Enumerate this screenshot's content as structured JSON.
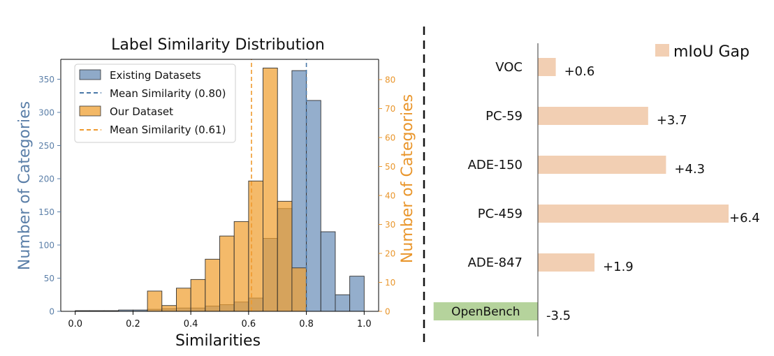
{
  "chart_data": [
    {
      "type": "bar",
      "subtype": "histogram",
      "title": "Label Similarity Distribution",
      "xlabel": "Similarities",
      "ylabel_left": "Number of Categories",
      "ylabel_right": "Number of Categories",
      "xlim": [
        -0.05,
        1.05
      ],
      "ylim_left": [
        0,
        380
      ],
      "ylim_right": [
        0,
        87
      ],
      "xticks": [
        "0.0",
        "0.2",
        "0.4",
        "0.6",
        "0.8",
        "1.0"
      ],
      "yticks_left": [
        "0",
        "50",
        "100",
        "150",
        "200",
        "250",
        "300",
        "350"
      ],
      "yticks_right": [
        "0",
        "10",
        "20",
        "30",
        "40",
        "50",
        "60",
        "70",
        "80"
      ],
      "bin_width": 0.05,
      "legend_position": "upper-left",
      "series": [
        {
          "name": "Existing Datasets",
          "axis": "left",
          "color": "#5a82b0",
          "bins": [
            {
              "x0": 0.0,
              "value": 1
            },
            {
              "x0": 0.05,
              "value": 1
            },
            {
              "x0": 0.1,
              "value": 1
            },
            {
              "x0": 0.15,
              "value": 2
            },
            {
              "x0": 0.2,
              "value": 2
            },
            {
              "x0": 0.25,
              "value": 3
            },
            {
              "x0": 0.3,
              "value": 4
            },
            {
              "x0": 0.35,
              "value": 5
            },
            {
              "x0": 0.4,
              "value": 5
            },
            {
              "x0": 0.45,
              "value": 8
            },
            {
              "x0": 0.5,
              "value": 10
            },
            {
              "x0": 0.55,
              "value": 14
            },
            {
              "x0": 0.6,
              "value": 20
            },
            {
              "x0": 0.65,
              "value": 110
            },
            {
              "x0": 0.7,
              "value": 155
            },
            {
              "x0": 0.75,
              "value": 363
            },
            {
              "x0": 0.8,
              "value": 318
            },
            {
              "x0": 0.85,
              "value": 120
            },
            {
              "x0": 0.9,
              "value": 25
            },
            {
              "x0": 0.95,
              "value": 53
            }
          ]
        },
        {
          "name": "Our Dataset",
          "axis": "right",
          "color": "#f0a030",
          "bins": [
            {
              "x0": 0.25,
              "value": 7
            },
            {
              "x0": 0.3,
              "value": 2
            },
            {
              "x0": 0.35,
              "value": 8
            },
            {
              "x0": 0.4,
              "value": 11
            },
            {
              "x0": 0.45,
              "value": 18
            },
            {
              "x0": 0.5,
              "value": 26
            },
            {
              "x0": 0.55,
              "value": 31
            },
            {
              "x0": 0.6,
              "value": 45
            },
            {
              "x0": 0.65,
              "value": 84
            },
            {
              "x0": 0.7,
              "value": 38
            },
            {
              "x0": 0.75,
              "value": 15
            }
          ]
        }
      ],
      "mean_lines": [
        {
          "label": "Mean Similarity (0.80)",
          "value": 0.8,
          "color": "#4a78a8"
        },
        {
          "label": "Mean Similarity (0.61)",
          "value": 0.61,
          "color": "#ef9a2e"
        }
      ]
    },
    {
      "type": "bar",
      "orientation": "horizontal",
      "legend": "mIoU Gap",
      "legend_position": "top-right",
      "xlim": [
        -3.7,
        6.9
      ],
      "categories": [
        "VOC",
        "PC-59",
        "ADE-150",
        "PC-459",
        "ADE-847",
        "OpenBench"
      ],
      "values": [
        0.6,
        3.7,
        4.3,
        6.4,
        1.9,
        -3.5
      ],
      "labels": [
        "+0.6",
        "+3.7",
        "+4.3",
        "+6.4",
        "+1.9",
        "-3.5"
      ],
      "colors": [
        "#f2cfb3",
        "#f2cfb3",
        "#f2cfb3",
        "#f2cfb3",
        "#f2cfb3",
        "#b5d39c"
      ],
      "highlighted_category": "OpenBench"
    }
  ],
  "colors": {
    "left_axis_text": "#5b7fa8",
    "right_axis_text": "#e9962c"
  }
}
